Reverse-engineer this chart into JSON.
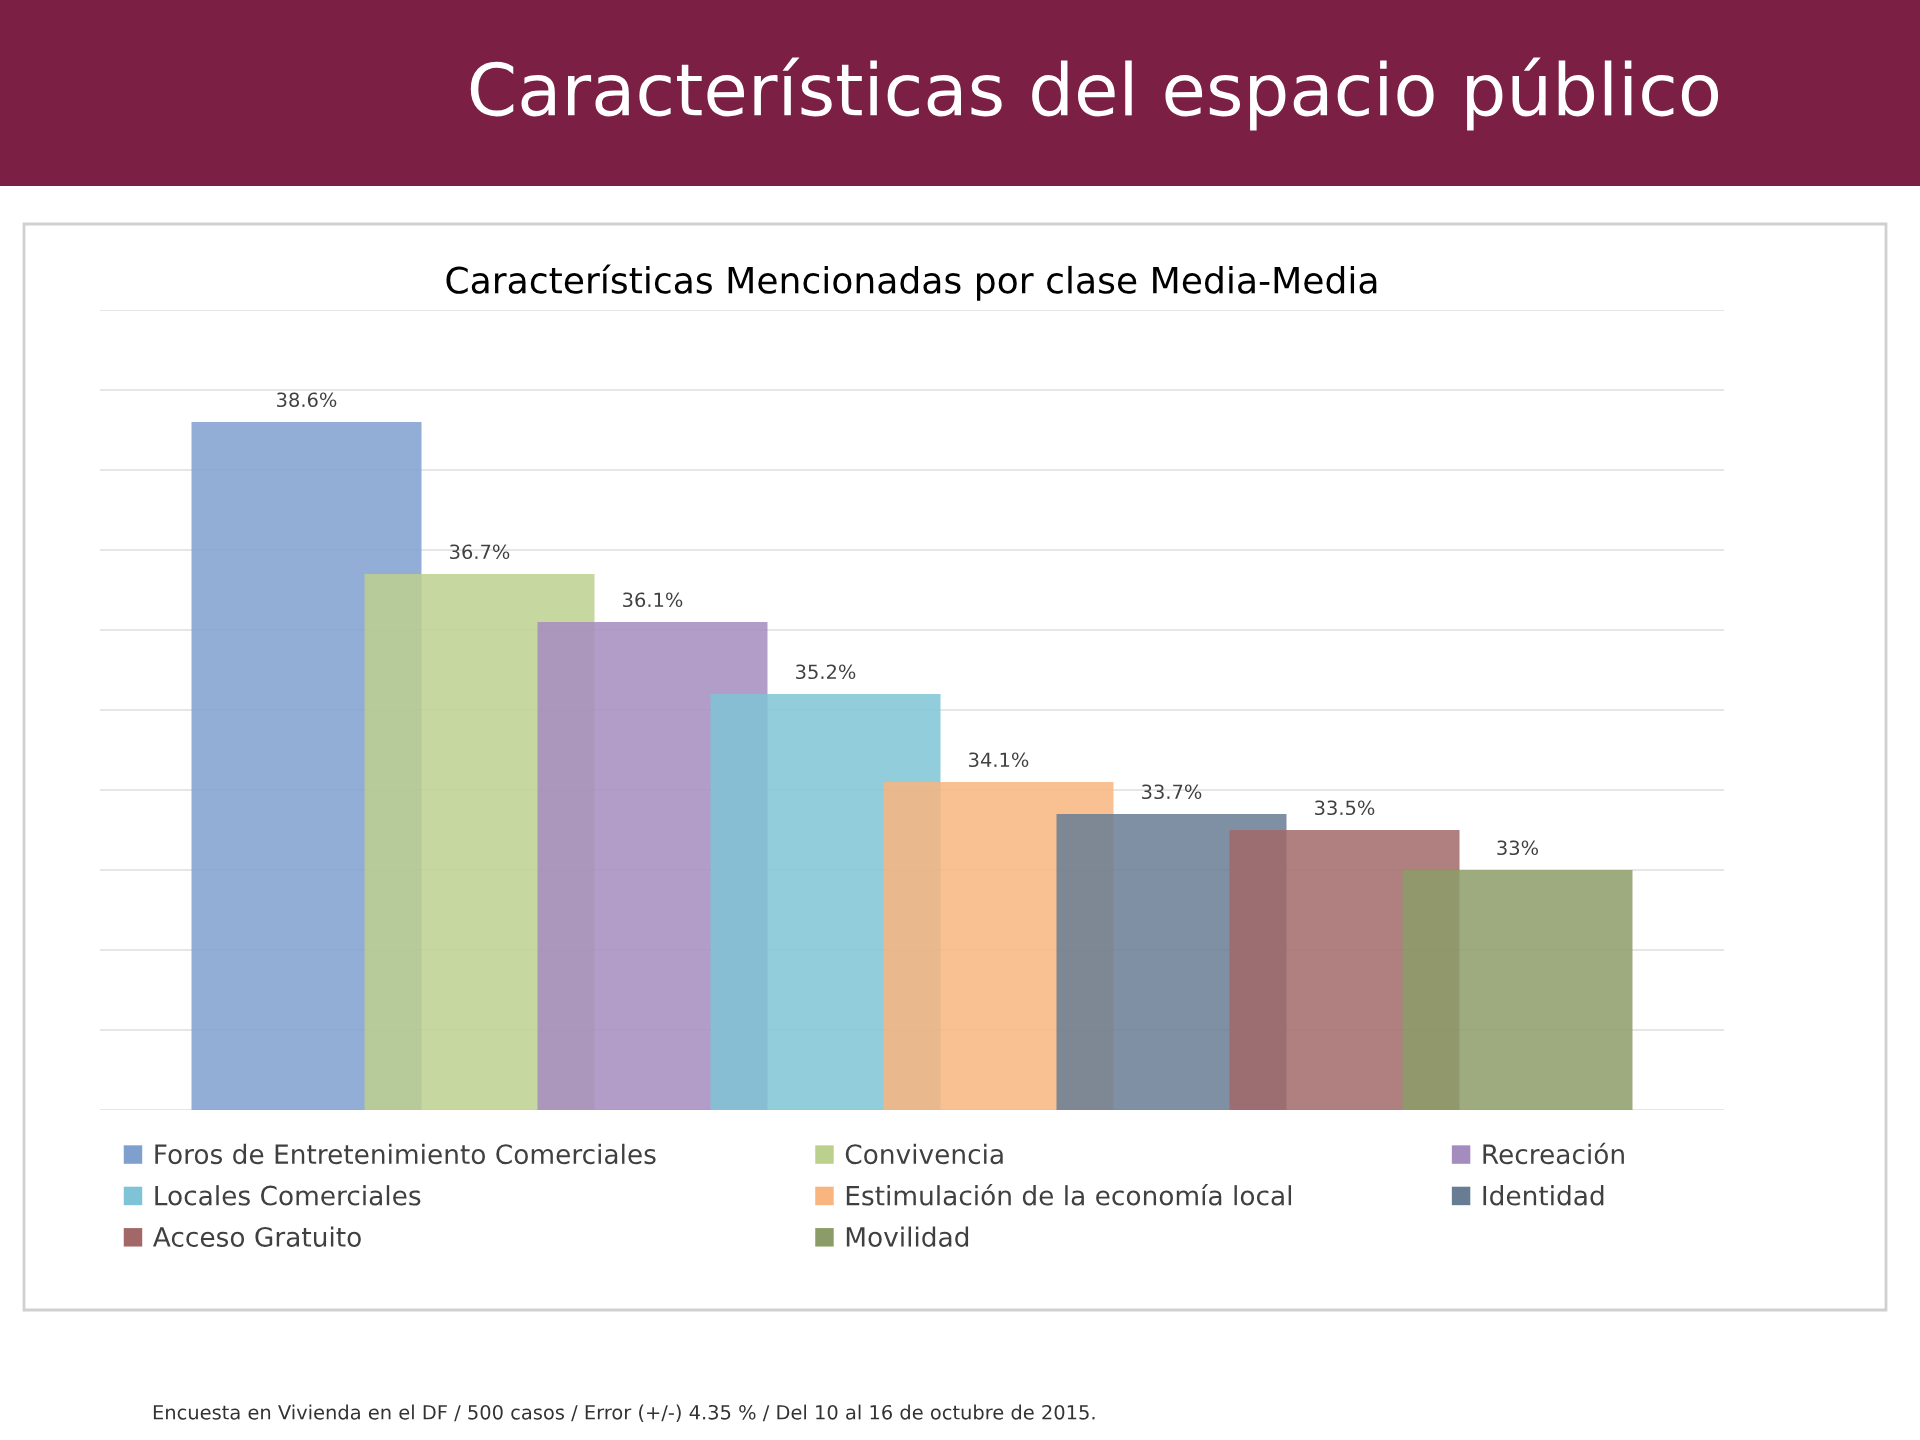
{
  "chart_data": {
    "type": "bar",
    "title": "Características del espacio público",
    "subtitle": "Características Mencionadas por clase Media-Media",
    "categories": [
      null
    ],
    "series": [
      {
        "name": "Foros de Entretenimiento Comerciales",
        "color": "#7f9fcf",
        "values": [
          38.6
        ],
        "value_labels": [
          "38.6%"
        ]
      },
      {
        "name": "Convivencia",
        "color": "#bcd08e",
        "values": [
          36.7
        ],
        "value_labels": [
          "36.7%"
        ]
      },
      {
        "name": "Recreación",
        "color": "#a48cbf",
        "values": [
          36.1
        ],
        "value_labels": [
          "36.1%"
        ]
      },
      {
        "name": "Locales Comerciales",
        "color": "#7fc4d6",
        "values": [
          35.2
        ],
        "value_labels": [
          "35.2%"
        ]
      },
      {
        "name": "Estimulación de la economía local",
        "color": "#f8b57f",
        "values": [
          34.1
        ],
        "value_labels": [
          "34.1%"
        ]
      },
      {
        "name": "Identidad",
        "color": "#687d94",
        "values": [
          33.7
        ],
        "value_labels": [
          "33.7%"
        ]
      },
      {
        "name": "Acceso Gratuito",
        "color": "#a26868",
        "values": [
          33.5
        ],
        "value_labels": [
          "33.5%"
        ]
      },
      {
        "name": "Movilidad",
        "color": "#8c9c68",
        "values": [
          33
        ],
        "value_labels": [
          "33%"
        ]
      }
    ],
    "ylim": [
      30,
      40
    ],
    "yticks": [
      {
        "value": 30,
        "label": null
      },
      {
        "value": 31,
        "label": null
      },
      {
        "value": 32,
        "label": null
      },
      {
        "value": 33,
        "label": null
      },
      {
        "value": 34,
        "label": null
      },
      {
        "value": 35,
        "label": null
      },
      {
        "value": 36,
        "label": null
      },
      {
        "value": 37,
        "label": null
      },
      {
        "value": 38,
        "label": null
      },
      {
        "value": 39,
        "label": null
      },
      {
        "value": 40,
        "label": null
      }
    ],
    "grid": "y",
    "legend": "bottom",
    "annotations": [
      "Encuesta en Vivienda en el DF / 500 casos / Error (+/-) 4.35 % / Del 10 al 16 de octubre de 2015."
    ]
  }
}
